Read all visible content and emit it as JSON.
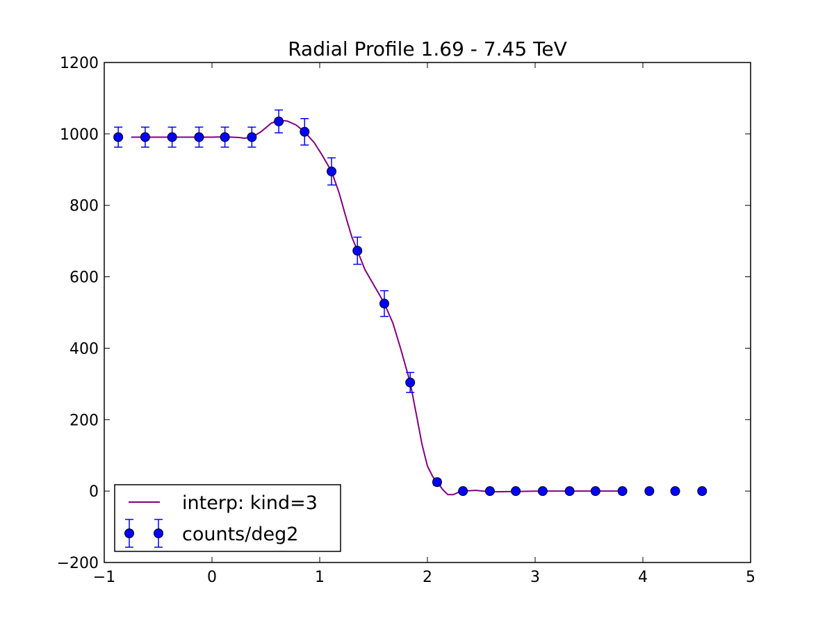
{
  "chart_data": {
    "type": "scatter",
    "title": "Radial Profile 1.69 - 7.45 TeV",
    "xlabel": "",
    "ylabel": "",
    "xlim": [
      -1,
      5
    ],
    "ylim": [
      -200,
      1200
    ],
    "x_ticks": [
      -1,
      0,
      1,
      2,
      3,
      4,
      5
    ],
    "x_tick_labels": [
      "−1",
      "0",
      "1",
      "2",
      "3",
      "4",
      "5"
    ],
    "y_ticks": [
      -200,
      0,
      200,
      400,
      600,
      800,
      1000,
      1200
    ],
    "y_tick_labels": [
      "−200",
      "0",
      "200",
      "400",
      "600",
      "800",
      "1000",
      "1200"
    ],
    "grid": false,
    "legend_position": "lower-left",
    "series": [
      {
        "name": "counts/deg2",
        "kind": "errorbar-points",
        "color": "#0000ff",
        "x": [
          -0.87,
          -0.62,
          -0.37,
          -0.12,
          0.12,
          0.37,
          0.62,
          0.86,
          1.11,
          1.35,
          1.6,
          1.84,
          2.09,
          2.33,
          2.58,
          2.82,
          3.07,
          3.32,
          3.56,
          3.81,
          4.06,
          4.3,
          4.55
        ],
        "y": [
          991,
          991,
          991,
          991,
          991,
          991,
          1035,
          1006,
          895,
          673,
          525,
          304,
          25,
          0,
          0,
          0,
          0,
          0,
          0,
          0,
          0,
          0,
          0
        ],
        "yerr": [
          28,
          28,
          28,
          28,
          28,
          28,
          32,
          37,
          38,
          38,
          36,
          28,
          8,
          0,
          0,
          0,
          0,
          0,
          0,
          0,
          0,
          0,
          0
        ]
      },
      {
        "name": "interp: kind=3",
        "kind": "line",
        "color": "#800080",
        "x": [
          -0.75,
          -0.5,
          -0.25,
          0.0,
          0.12,
          0.25,
          0.3,
          0.37,
          0.45,
          0.55,
          0.62,
          0.7,
          0.78,
          0.86,
          0.95,
          1.02,
          1.11,
          1.18,
          1.25,
          1.3,
          1.35,
          1.42,
          1.5,
          1.55,
          1.6,
          1.68,
          1.75,
          1.84,
          1.9,
          1.95,
          2.0,
          2.05,
          2.09,
          2.14,
          2.19,
          2.24,
          2.29,
          2.33,
          2.45,
          2.58,
          2.82,
          3.07,
          3.32,
          3.56,
          3.81
        ],
        "y": [
          991,
          991,
          991,
          991,
          992,
          990,
          988,
          991,
          1005,
          1030,
          1038,
          1036,
          1025,
          1006,
          975,
          942,
          895,
          835,
          760,
          710,
          673,
          620,
          578,
          552,
          525,
          470,
          400,
          304,
          210,
          130,
          70,
          40,
          25,
          5,
          -10,
          -10,
          -3,
          0,
          2,
          -2,
          -1,
          0,
          0,
          0,
          0
        ]
      }
    ],
    "legend": [
      {
        "label": "interp: kind=3",
        "symbol": "line",
        "color": "#800080"
      },
      {
        "label": "counts/deg2",
        "symbol": "errorbar-points",
        "color": "#0000ff"
      }
    ]
  }
}
